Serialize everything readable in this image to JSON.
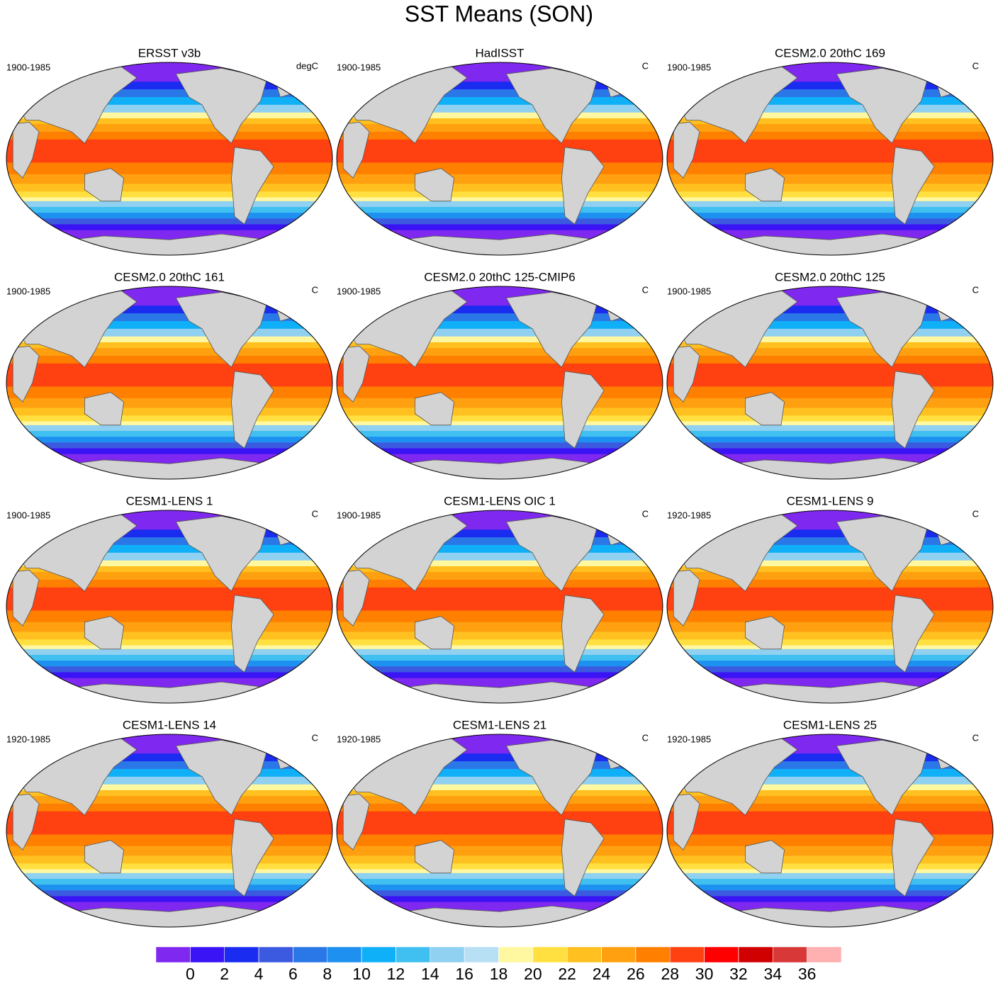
{
  "title": "SST Means (SON)",
  "panels": [
    {
      "title": "ERSST v3b",
      "period": "1900-1985",
      "units": "degC"
    },
    {
      "title": "HadISST",
      "period": "1900-1985",
      "units": "C"
    },
    {
      "title": "CESM2.0 20thC 169",
      "period": "1900-1985",
      "units": "C"
    },
    {
      "title": "CESM2.0 20thC 161",
      "period": "1900-1985",
      "units": "C"
    },
    {
      "title": "CESM2.0 20thC 125-CMIP6",
      "period": "1900-1985",
      "units": "C"
    },
    {
      "title": "CESM2.0 20thC 125",
      "period": "1900-1985",
      "units": "C"
    },
    {
      "title": "CESM1-LENS 1",
      "period": "1900-1985",
      "units": "C"
    },
    {
      "title": "CESM1-LENS OIC 1",
      "period": "1900-1985",
      "units": "C"
    },
    {
      "title": "CESM1-LENS 9",
      "period": "1920-1985",
      "units": "C"
    },
    {
      "title": "CESM1-LENS 14",
      "period": "1920-1985",
      "units": "C"
    },
    {
      "title": "CESM1-LENS 21",
      "period": "1920-1985",
      "units": "C"
    },
    {
      "title": "CESM1-LENS 25",
      "period": "1920-1985",
      "units": "C"
    }
  ],
  "colorbar": {
    "levels": [
      0,
      2,
      4,
      6,
      8,
      10,
      12,
      14,
      16,
      18,
      20,
      22,
      24,
      26,
      28,
      30,
      32,
      34,
      36
    ],
    "colors": [
      "#7f28f0",
      "#3a14f5",
      "#1a2cf0",
      "#3c5ae0",
      "#2a78e8",
      "#1e90f0",
      "#10b0f8",
      "#40c0f0",
      "#90d0f0",
      "#b8e0f4",
      "#fff8a0",
      "#ffe040",
      "#ffc020",
      "#ffa010",
      "#ff8000",
      "#ff4010",
      "#ff0000",
      "#d00000",
      "#d83838",
      "#ffb0b0"
    ]
  }
}
